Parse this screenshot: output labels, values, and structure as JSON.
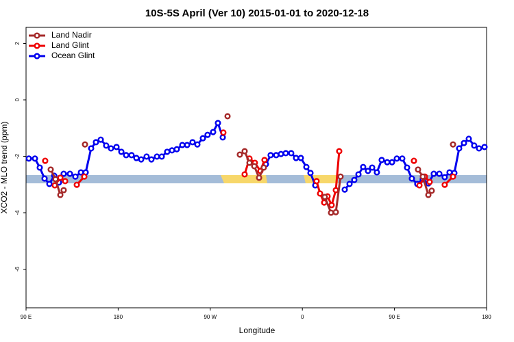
{
  "chart_data": {
    "type": "line",
    "title": "10S-5S April (Ver 10)   2015-01-01 to 2020-12-18",
    "x_label": "Longitude",
    "y_label": "XCO2 - MLO trend (ppm)",
    "xlim": [
      90,
      540
    ],
    "ylim": [
      -7.37,
      2.57
    ],
    "xticks": [
      {
        "value": 90,
        "label": "90 E"
      },
      180,
      {
        "value": 270,
        "label": "90 W"
      },
      {
        "value": 360,
        "label": "0"
      },
      {
        "value": 450,
        "label": "90 E"
      },
      {
        "value": 540,
        "label": "180"
      }
    ],
    "yticks": [
      -6,
      -4,
      -2,
      0,
      2
    ],
    "legend": "top-left",
    "series": [
      {
        "name": "Land Nadir",
        "color": "#a52a2a",
        "x": [
          114.1,
          118.8,
          123.5,
          126.8,
          null,
          147.6,
          null,
          286.9,
          null,
          298.9,
          303.6,
          308.3,
          313.0,
          317.7,
          322.3,
          null,
          381.9,
          388.0,
          392.7,
          397.3,
          null,
          473.0,
          477.7,
          483.1,
          486.4,
          null,
          507.2
        ],
        "values": [
          -2.47,
          -2.81,
          -3.37,
          -3.2,
          null,
          -1.58,
          null,
          -0.58,
          null,
          -1.94,
          -1.82,
          -2.23,
          -2.35,
          -2.76,
          -2.4,
          null,
          -3.44,
          -4.0,
          -3.98,
          -2.72,
          null,
          -2.47,
          -2.72,
          -3.37,
          -3.22,
          null,
          -1.58
        ]
      },
      {
        "name": "Land Glint",
        "color": "#ee0000",
        "x": [
          108.7,
          null,
          118.1,
          123.5,
          128.2,
          null,
          139.6,
          146.9,
          null,
          282.8,
          null,
          303.6,
          308.3,
          313.6,
          319.0,
          323.0,
          null,
          373.9,
          377.3,
          381.3,
          384.6,
          388.6,
          392.7,
          396.0,
          null,
          469.0,
          null,
          474.4,
          479.7,
          484.4,
          null,
          499.1,
          507.2
        ],
        "values": [
          -2.16,
          null,
          -3.03,
          -2.76,
          -2.88,
          null,
          -3.01,
          -2.72,
          null,
          -1.16,
          null,
          -2.64,
          -2.08,
          -2.23,
          -2.52,
          -2.13,
          null,
          -2.88,
          -3.32,
          -3.64,
          -3.42,
          -3.73,
          -3.2,
          -1.82,
          null,
          -2.16,
          null,
          -3.03,
          -2.72,
          -2.91,
          null,
          -3.01,
          -2.72
        ]
      },
      {
        "name": "Ocean Glint",
        "color": "#0000ee",
        "x": [
          92.7,
          98.7,
          103.4,
          108.1,
          112.8,
          117.5,
          122.1,
          126.8,
          132.9,
          138.2,
          143.6,
          148.3,
          153.6,
          158.3,
          163.0,
          168.3,
          173.0,
          178.4,
          183.1,
          187.8,
          193.1,
          197.8,
          202.5,
          207.8,
          212.5,
          217.9,
          222.6,
          227.9,
          232.6,
          237.3,
          242.7,
          247.4,
          252.7,
          257.4,
          262.8,
          267.4,
          272.8,
          277.5,
          282.2,
          null,
          324.4,
          329.0,
          334.4,
          339.1,
          343.8,
          349.1,
          353.8,
          358.5,
          363.9,
          367.9,
          372.6,
          null,
          401.4,
          406.1,
          410.7,
          414.8,
          419.4,
          424.1,
          428.2,
          432.8,
          437.5,
          442.9,
          447.6,
          452.3,
          457.6,
          462.3,
          467.0,
          472.3,
          477.6,
          483.1,
          488.4,
          493.8,
          499.1,
          503.8,
          508.5,
          513.2,
          517.9,
          522.6,
          527.9,
          532.6,
          538.0
        ],
        "values": [
          -2.08,
          -2.08,
          -2.4,
          -2.79,
          -2.98,
          -2.69,
          -2.93,
          -2.62,
          -2.62,
          -2.72,
          -2.57,
          -2.57,
          -1.72,
          -1.5,
          -1.41,
          -1.62,
          -1.72,
          -1.67,
          -1.84,
          -1.96,
          -1.96,
          -2.06,
          -2.11,
          -2.01,
          -2.11,
          -2.01,
          -2.01,
          -1.84,
          -1.79,
          -1.75,
          -1.6,
          -1.6,
          -1.5,
          -1.58,
          -1.36,
          -1.24,
          -1.14,
          -0.82,
          -1.33,
          null,
          -2.28,
          -1.96,
          -1.96,
          -1.92,
          -1.89,
          -1.89,
          -2.06,
          -2.06,
          -2.38,
          -2.59,
          -3.03,
          null,
          -3.18,
          -2.98,
          -2.84,
          -2.64,
          -2.38,
          -2.52,
          -2.4,
          -2.57,
          -2.13,
          -2.21,
          -2.21,
          -2.08,
          -2.08,
          -2.4,
          -2.79,
          -2.98,
          -2.81,
          -2.96,
          -2.62,
          -2.62,
          -2.74,
          -2.57,
          -2.59,
          -1.72,
          -1.53,
          -1.38,
          -1.62,
          -1.72,
          -1.67
        ]
      }
    ]
  }
}
